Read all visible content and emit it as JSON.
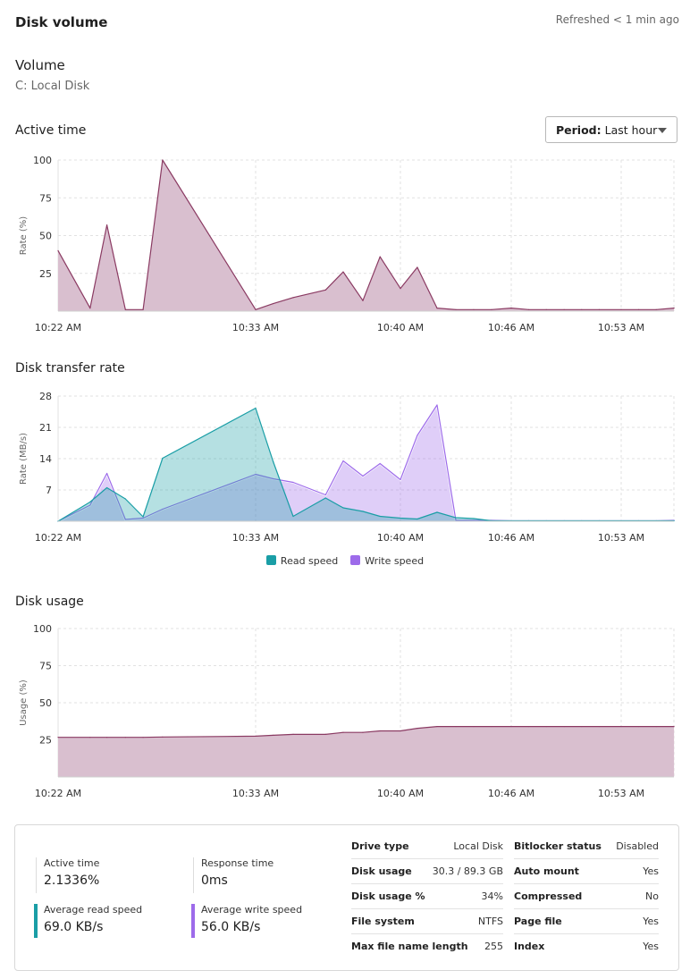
{
  "header": {
    "title": "Disk volume",
    "refreshed": "Refreshed < 1 min ago"
  },
  "volume": {
    "title": "Volume",
    "name": "C: Local Disk"
  },
  "period": {
    "label": "Period:",
    "value": "Last hour"
  },
  "colors": {
    "active": "#8a3a62",
    "active_fill": "#d9bfcf",
    "read": "#1a9ea6",
    "write": "#9d6bea"
  },
  "chart_data": [
    {
      "id": "active",
      "title": "Active time",
      "type": "area",
      "ylabel": "Rate (%)",
      "ylim": [
        0,
        100
      ],
      "yticks": [
        25,
        50,
        75,
        100
      ],
      "xticks": [
        "10:22 AM",
        "10:33 AM",
        "10:40 AM",
        "10:46 AM",
        "10:53 AM"
      ],
      "grid": true,
      "x": [
        "10:22:00",
        "10:23:47",
        "10:24:43",
        "10:25:45",
        "10:26:44",
        "10:27:49",
        "10:33:00",
        "10:33:51",
        "10:34:49",
        "10:36:23",
        "10:37:14",
        "10:38:11",
        "10:39:01",
        "10:40:00",
        "10:40:55",
        "10:41:59",
        "10:43:00",
        "10:43:58",
        "10:44:56",
        "10:46:00",
        "10:47:07",
        "10:48:14",
        "10:49:22",
        "10:50:29",
        "10:51:36",
        "10:53:00",
        "10:54:07",
        "10:55:14",
        "10:56:22"
      ],
      "series": [
        {
          "values": [
            40,
            2,
            57,
            1,
            1,
            100,
            1,
            5,
            9,
            14,
            26,
            7,
            36,
            15,
            29,
            2,
            1,
            1,
            1,
            2,
            1,
            1,
            1,
            1,
            1,
            1,
            1,
            1,
            2
          ]
        }
      ]
    },
    {
      "id": "transfer",
      "title": "Disk transfer rate",
      "type": "area",
      "ylabel": "Rate (MB/s)",
      "ylim": [
        0,
        28
      ],
      "yticks": [
        7,
        14,
        21,
        28
      ],
      "xticks": [
        "10:22 AM",
        "10:33 AM",
        "10:40 AM",
        "10:46 AM",
        "10:53 AM"
      ],
      "grid": true,
      "legend": "bottom",
      "x": [
        "10:22:00",
        "10:23:47",
        "10:24:43",
        "10:25:45",
        "10:26:44",
        "10:27:49",
        "10:33:00",
        "10:33:51",
        "10:34:49",
        "10:36:23",
        "10:37:14",
        "10:38:11",
        "10:39:01",
        "10:40:00",
        "10:40:55",
        "10:41:59",
        "10:43:00",
        "10:43:58",
        "10:44:56",
        "10:46:00",
        "10:47:07",
        "10:48:14",
        "10:49:22",
        "10:50:29",
        "10:51:36",
        "10:53:00",
        "10:54:07",
        "10:55:14",
        "10:56:22"
      ],
      "series": [
        {
          "name": "Write speed",
          "values": [
            0,
            3.6,
            10.7,
            0.4,
            0.7,
            2.7,
            10.5,
            9.5,
            8.7,
            5.9,
            13.5,
            10.1,
            12.9,
            9.3,
            19.2,
            26,
            0.2,
            0.2,
            0.2,
            0.1,
            0.1,
            0.1,
            0.1,
            0.1,
            0.1,
            0.1,
            0.1,
            0.1,
            0.2
          ]
        },
        {
          "name": "Read speed",
          "values": [
            0,
            4.3,
            7.5,
            5,
            1,
            14.1,
            25.3,
            13.3,
            1.1,
            5.2,
            3,
            2.2,
            1.1,
            0.7,
            0.5,
            2,
            0.8,
            0.6,
            0.1,
            0.1,
            0.1,
            0.1,
            0.1,
            0.1,
            0.1,
            0.1,
            0.1,
            0.1,
            0.1
          ]
        }
      ]
    },
    {
      "id": "usage",
      "title": "Disk usage",
      "type": "area",
      "ylabel": "Usage (%)",
      "ylim": [
        0,
        100
      ],
      "yticks": [
        25,
        50,
        75,
        100
      ],
      "xticks": [
        "10:22 AM",
        "10:33 AM",
        "10:40 AM",
        "10:46 AM",
        "10:53 AM"
      ],
      "grid": true,
      "x": [
        "10:22:00",
        "10:23:47",
        "10:24:43",
        "10:25:45",
        "10:26:44",
        "10:27:49",
        "10:33:00",
        "10:33:51",
        "10:34:49",
        "10:36:23",
        "10:37:14",
        "10:38:11",
        "10:39:01",
        "10:40:00",
        "10:40:55",
        "10:41:59",
        "10:43:00",
        "10:43:58",
        "10:44:56",
        "10:46:00",
        "10:47:07",
        "10:48:14",
        "10:49:22",
        "10:50:29",
        "10:51:36",
        "10:53:00",
        "10:54:07",
        "10:55:14",
        "10:56:22"
      ],
      "series": [
        {
          "values": [
            26.7,
            26.7,
            26.7,
            26.7,
            26.7,
            26.9,
            27.5,
            28.1,
            28.7,
            28.7,
            30,
            30,
            31,
            31,
            32.8,
            34,
            34,
            34,
            34,
            34,
            34,
            34,
            34,
            34,
            34,
            34,
            34,
            34,
            34
          ]
        }
      ]
    }
  ],
  "summary": {
    "active_time": {
      "label": "Active time",
      "value": "2.1336%"
    },
    "response_time": {
      "label": "Response time",
      "value": "0ms"
    },
    "avg_read": {
      "label": "Average read speed",
      "value": "69.0 KB/s"
    },
    "avg_write": {
      "label": "Average write speed",
      "value": "56.0 KB/s"
    },
    "details_left": [
      {
        "k": "Drive type",
        "v": "Local Disk"
      },
      {
        "k": "Disk usage",
        "v": "30.3 / 89.3 GB"
      },
      {
        "k": "Disk usage %",
        "v": "34%"
      },
      {
        "k": "File system",
        "v": "NTFS"
      },
      {
        "k": "Max file name length",
        "v": "255"
      }
    ],
    "details_right": [
      {
        "k": "Bitlocker status",
        "v": "Disabled"
      },
      {
        "k": "Auto mount",
        "v": "Yes"
      },
      {
        "k": "Compressed",
        "v": "No"
      },
      {
        "k": "Page file",
        "v": "Yes"
      },
      {
        "k": "Index",
        "v": "Yes"
      }
    ]
  }
}
